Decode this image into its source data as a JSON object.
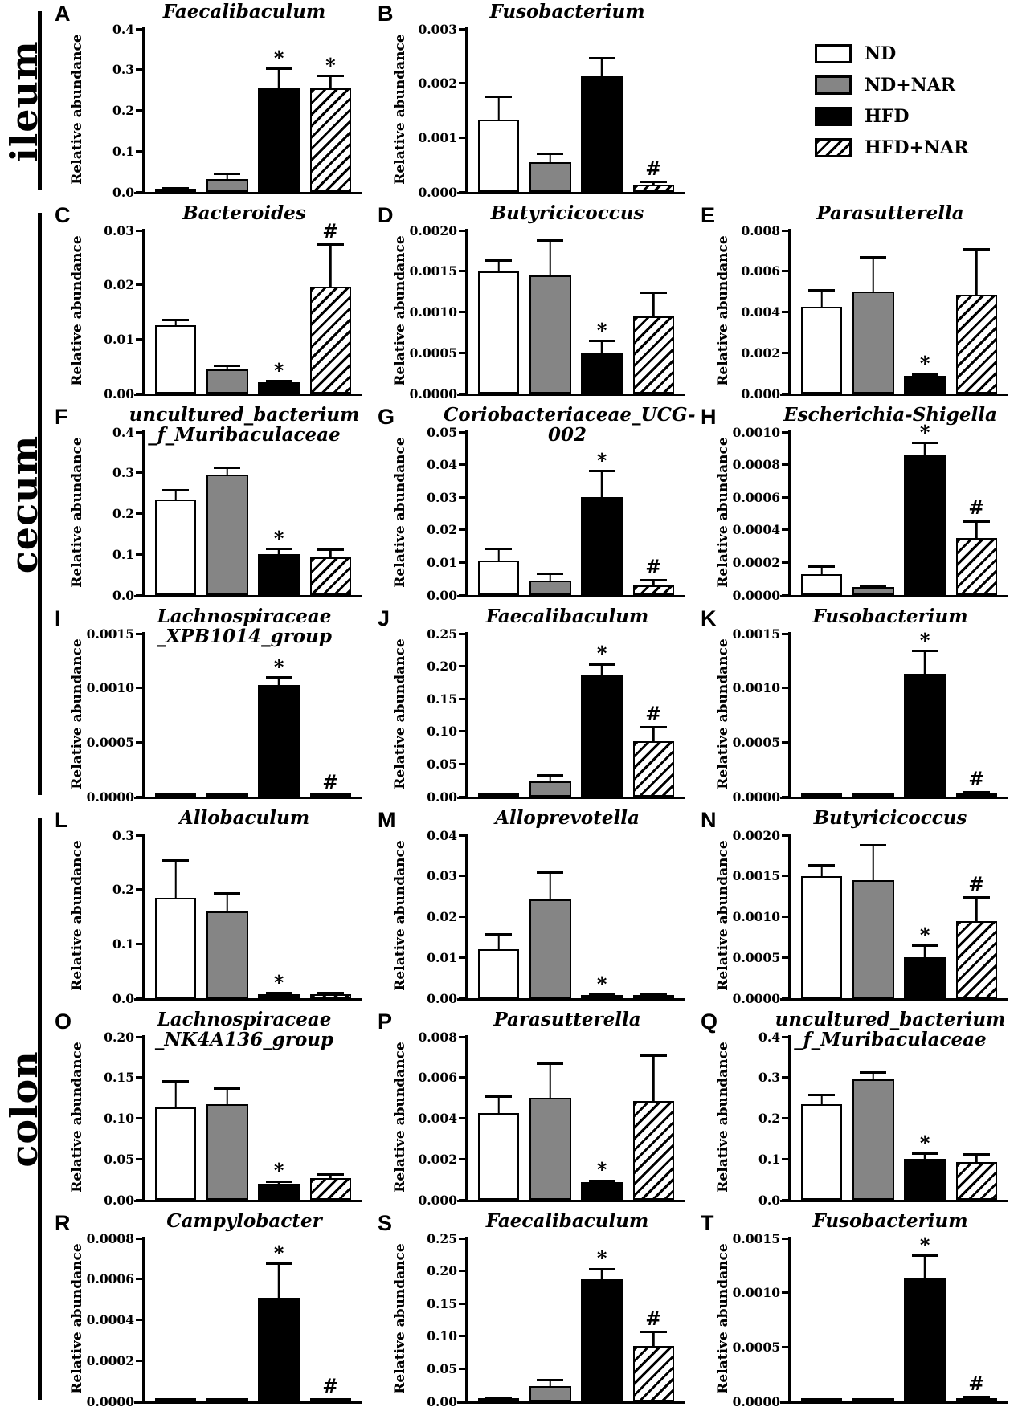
{
  "figure": {
    "ylabel_default": "Relative abundance"
  },
  "legend": {
    "items": [
      {
        "label": "ND",
        "fill": "white"
      },
      {
        "label": "ND+NAR",
        "fill": "gray"
      },
      {
        "label": "HFD",
        "fill": "black"
      },
      {
        "label": "HFD+NAR",
        "fill": "hatch"
      }
    ]
  },
  "colors": {
    "bar_black": "#000000",
    "bar_gray": "#858585",
    "bar_white": "#ffffff",
    "axis": "#000000",
    "background": "#ffffff"
  },
  "sections": [
    {
      "name": "ileum",
      "rows": [
        [
          "A",
          "B"
        ]
      ],
      "legend_in_row": 0
    },
    {
      "name": "cecum",
      "rows": [
        [
          "C",
          "D",
          "E"
        ],
        [
          "F",
          "G",
          "H"
        ],
        [
          "I",
          "J",
          "K"
        ]
      ]
    },
    {
      "name": "colon",
      "rows": [
        [
          "L",
          "M",
          "N"
        ],
        [
          "O",
          "P",
          "Q"
        ],
        [
          "R",
          "S",
          "T"
        ]
      ]
    }
  ],
  "chart_data": [
    {
      "label": "A",
      "section": "ileum",
      "type": "bar",
      "title": "Faecalibaculum",
      "title_lines": [
        "Faecalibaculum"
      ],
      "ylabel": "Relative abundance",
      "categories": [
        "ND",
        "ND+NAR",
        "HFD",
        "HFD+NAR"
      ],
      "values": [
        0.007,
        0.032,
        0.257,
        0.255
      ],
      "errors": [
        0.004,
        0.016,
        0.048,
        0.033
      ],
      "sig": [
        "",
        "",
        "*",
        "*"
      ],
      "ylim": [
        0,
        0.4
      ],
      "yticks": [
        "0.0",
        "0.1",
        "0.2",
        "0.3",
        "0.4"
      ]
    },
    {
      "label": "B",
      "section": "ileum",
      "type": "bar",
      "title": "Fusobacterium",
      "title_lines": [
        "Fusobacterium"
      ],
      "ylabel": "Relative abundance",
      "categories": [
        "ND",
        "ND+NAR",
        "HFD",
        "HFD+NAR"
      ],
      "values": [
        0.00133,
        0.00055,
        0.00213,
        0.00014
      ],
      "errors": [
        0.00044,
        0.00017,
        0.00035,
        7e-05
      ],
      "sig": [
        "",
        "",
        "",
        "#"
      ],
      "ylim": [
        0,
        0.003
      ],
      "yticks": [
        "0.000",
        "0.001",
        "0.002",
        "0.003"
      ]
    },
    {
      "label": "C",
      "section": "cecum",
      "type": "bar",
      "title": "Bacteroides",
      "title_lines": [
        "Bacteroides"
      ],
      "ylabel": "Relative abundance",
      "categories": [
        "ND",
        "ND+NAR",
        "HFD",
        "HFD+NAR"
      ],
      "values": [
        0.0125,
        0.0045,
        0.002,
        0.0196
      ],
      "errors": [
        0.0013,
        0.0008,
        0.0005,
        0.008
      ],
      "sig": [
        "",
        "",
        "*",
        "#"
      ],
      "ylim": [
        0,
        0.03
      ],
      "yticks": [
        "0.00",
        "0.01",
        "0.02",
        "0.03"
      ]
    },
    {
      "label": "D",
      "section": "cecum",
      "type": "bar",
      "title": "Butyricicoccus",
      "title_lines": [
        "Butyricicoccus"
      ],
      "ylabel": "Relative abundance",
      "categories": [
        "ND",
        "ND+NAR",
        "HFD",
        "HFD+NAR"
      ],
      "values": [
        0.0015,
        0.00145,
        0.0005,
        0.00095
      ],
      "errors": [
        0.00015,
        0.00044,
        0.00016,
        0.0003
      ],
      "sig": [
        "",
        "",
        "*",
        ""
      ],
      "ylim": [
        0,
        0.002
      ],
      "yticks": [
        "0.0000",
        "0.0005",
        "0.0010",
        "0.0015",
        "0.0020"
      ]
    },
    {
      "label": "E",
      "section": "cecum",
      "type": "bar",
      "title": "Parasutterella",
      "title_lines": [
        "Parasutterella"
      ],
      "ylabel": "Relative abundance",
      "categories": [
        "ND",
        "ND+NAR",
        "HFD",
        "HFD+NAR"
      ],
      "values": [
        0.00425,
        0.005,
        0.00085,
        0.00485
      ],
      "errors": [
        0.00088,
        0.00175,
        0.00015,
        0.0023
      ],
      "sig": [
        "",
        "",
        "*",
        ""
      ],
      "ylim": [
        0,
        0.008
      ],
      "yticks": [
        "0.000",
        "0.002",
        "0.004",
        "0.006",
        "0.008"
      ]
    },
    {
      "label": "F",
      "section": "cecum",
      "type": "bar",
      "title": "uncultured_bacterium_f_Muribaculaceae",
      "title_lines": [
        "uncultured_bacterium",
        "_f_Muribaculaceae"
      ],
      "ylabel": "Relative abundance",
      "categories": [
        "ND",
        "ND+NAR",
        "HFD",
        "HFD+NAR"
      ],
      "values": [
        0.235,
        0.295,
        0.1,
        0.093
      ],
      "errors": [
        0.026,
        0.02,
        0.016,
        0.022
      ],
      "sig": [
        "",
        "",
        "*",
        ""
      ],
      "ylim": [
        0,
        0.4
      ],
      "yticks": [
        "0.0",
        "0.1",
        "0.2",
        "0.3",
        "0.4"
      ]
    },
    {
      "label": "G",
      "section": "cecum",
      "type": "bar",
      "title": "Coriobacteriaceae_UCG-002",
      "title_lines": [
        "Coriobacteriaceae_UCG-002"
      ],
      "ylabel": "Relative abundance",
      "categories": [
        "ND",
        "ND+NAR",
        "HFD",
        "HFD+NAR"
      ],
      "values": [
        0.0105,
        0.0045,
        0.03,
        0.003
      ],
      "errors": [
        0.004,
        0.0025,
        0.0085,
        0.002
      ],
      "sig": [
        "",
        "",
        "*",
        "#"
      ],
      "ylim": [
        0,
        0.05
      ],
      "yticks": [
        "0.00",
        "0.01",
        "0.02",
        "0.03",
        "0.04",
        "0.05"
      ]
    },
    {
      "label": "H",
      "section": "cecum",
      "type": "bar",
      "title": "Escherichia-Shigella",
      "title_lines": [
        "Escherichia-Shigella"
      ],
      "ylabel": "Relative abundance",
      "categories": [
        "ND",
        "ND+NAR",
        "HFD",
        "HFD+NAR"
      ],
      "values": [
        0.00013,
        5e-05,
        0.00086,
        0.00035
      ],
      "errors": [
        5e-05,
        1e-05,
        8e-05,
        0.00011
      ],
      "sig": [
        "",
        "",
        "*",
        "#"
      ],
      "ylim": [
        0,
        0.001
      ],
      "yticks": [
        "0.0000",
        "0.0002",
        "0.0004",
        "0.0006",
        "0.0008",
        "0.0010"
      ]
    },
    {
      "label": "I",
      "section": "cecum",
      "type": "bar",
      "title": "Lachnospiraceae_XPB1014_group",
      "title_lines": [
        "Lachnospiraceae",
        "_XPB1014_group"
      ],
      "ylabel": "Relative abundance",
      "categories": [
        "ND",
        "ND+NAR",
        "HFD",
        "HFD+NAR"
      ],
      "values": [
        2e-05,
        1e-05,
        0.00103,
        1e-05
      ],
      "errors": [
        1e-05,
        5e-06,
        8e-05,
        5e-06
      ],
      "sig": [
        "",
        "",
        "*",
        "#"
      ],
      "ylim": [
        0,
        0.0015
      ],
      "yticks": [
        "0.0000",
        "0.0005",
        "0.0010",
        "0.0015"
      ]
    },
    {
      "label": "J",
      "section": "cecum",
      "type": "bar",
      "title": "Faecalibaculum",
      "title_lines": [
        "Faecalibaculum"
      ],
      "ylabel": "Relative abundance",
      "categories": [
        "ND",
        "ND+NAR",
        "HFD",
        "HFD+NAR"
      ],
      "values": [
        0.004,
        0.024,
        0.187,
        0.085
      ],
      "errors": [
        0.002,
        0.011,
        0.018,
        0.023
      ],
      "sig": [
        "",
        "",
        "*",
        "#"
      ],
      "ylim": [
        0,
        0.25
      ],
      "yticks": [
        "0.00",
        "0.05",
        "0.10",
        "0.15",
        "0.20",
        "0.25"
      ]
    },
    {
      "label": "K",
      "section": "cecum",
      "type": "bar",
      "title": "Fusobacterium",
      "title_lines": [
        "Fusobacterium"
      ],
      "ylabel": "Relative abundance",
      "categories": [
        "ND",
        "ND+NAR",
        "HFD",
        "HFD+NAR"
      ],
      "values": [
        2e-05,
        1e-05,
        0.00113,
        3e-05
      ],
      "errors": [
        1e-05,
        5e-06,
        0.00022,
        2e-05
      ],
      "sig": [
        "",
        "",
        "*",
        "#"
      ],
      "ylim": [
        0,
        0.0015
      ],
      "yticks": [
        "0.0000",
        "0.0005",
        "0.0010",
        "0.0015"
      ]
    },
    {
      "label": "L",
      "section": "colon",
      "type": "bar",
      "title": "Allobaculum",
      "title_lines": [
        "Allobaculum"
      ],
      "ylabel": "Relative abundance",
      "categories": [
        "ND",
        "ND+NAR",
        "HFD",
        "HFD+NAR"
      ],
      "values": [
        0.185,
        0.16,
        0.008,
        0.008
      ],
      "errors": [
        0.07,
        0.035,
        0.004,
        0.004
      ],
      "sig": [
        "",
        "",
        "*",
        ""
      ],
      "ylim": [
        0,
        0.3
      ],
      "yticks": [
        "0.0",
        "0.1",
        "0.2",
        "0.3"
      ]
    },
    {
      "label": "M",
      "section": "colon",
      "type": "bar",
      "title": "Alloprevotella",
      "title_lines": [
        "Alloprevotella"
      ],
      "ylabel": "Relative abundance",
      "categories": [
        "ND",
        "ND+NAR",
        "HFD",
        "HFD+NAR"
      ],
      "values": [
        0.012,
        0.0243,
        0.0008,
        0.0008
      ],
      "errors": [
        0.004,
        0.0068,
        0.0004,
        0.0004
      ],
      "sig": [
        "",
        "",
        "*",
        ""
      ],
      "ylim": [
        0,
        0.04
      ],
      "yticks": [
        "0.00",
        "0.01",
        "0.02",
        "0.03",
        "0.04"
      ]
    },
    {
      "label": "N",
      "section": "colon",
      "type": "bar",
      "title": "Butyricicoccus",
      "title_lines": [
        "Butyricicoccus"
      ],
      "ylabel": "Relative abundance",
      "categories": [
        "ND",
        "ND+NAR",
        "HFD",
        "HFD+NAR"
      ],
      "values": [
        0.0015,
        0.00145,
        0.0005,
        0.00095
      ],
      "errors": [
        0.00015,
        0.00044,
        0.00016,
        0.0003
      ],
      "sig": [
        "",
        "",
        "*",
        "#"
      ],
      "ylim": [
        0,
        0.002
      ],
      "yticks": [
        "0.0000",
        "0.0005",
        "0.0010",
        "0.0015",
        "0.0020"
      ]
    },
    {
      "label": "O",
      "section": "colon",
      "type": "bar",
      "title": "Lachnospiraceae_NK4A136_group",
      "title_lines": [
        "Lachnospiraceae",
        "_NK4A136_group"
      ],
      "ylabel": "Relative abundance",
      "categories": [
        "ND",
        "ND+NAR",
        "HFD",
        "HFD+NAR"
      ],
      "values": [
        0.113,
        0.117,
        0.02,
        0.027
      ],
      "errors": [
        0.034,
        0.021,
        0.004,
        0.006
      ],
      "sig": [
        "",
        "",
        "*",
        ""
      ],
      "ylim": [
        0,
        0.2
      ],
      "yticks": [
        "0.00",
        "0.05",
        "0.10",
        "0.15",
        "0.20"
      ]
    },
    {
      "label": "P",
      "section": "colon",
      "type": "bar",
      "title": "Parasutterella",
      "title_lines": [
        "Parasutterella"
      ],
      "ylabel": "Relative abundance",
      "categories": [
        "ND",
        "ND+NAR",
        "HFD",
        "HFD+NAR"
      ],
      "values": [
        0.00425,
        0.005,
        0.00085,
        0.00485
      ],
      "errors": [
        0.00088,
        0.00175,
        0.00015,
        0.0023
      ],
      "sig": [
        "",
        "",
        "*",
        ""
      ],
      "ylim": [
        0,
        0.008
      ],
      "yticks": [
        "0.000",
        "0.002",
        "0.004",
        "0.006",
        "0.008"
      ]
    },
    {
      "label": "Q",
      "section": "colon",
      "type": "bar",
      "title": "uncultured_bacterium_f_Muribaculaceae",
      "title_lines": [
        "uncultured_bacterium",
        "_f_Muribaculaceae"
      ],
      "ylabel": "Relative abundance",
      "categories": [
        "ND",
        "ND+NAR",
        "HFD",
        "HFD+NAR"
      ],
      "values": [
        0.235,
        0.295,
        0.1,
        0.093
      ],
      "errors": [
        0.026,
        0.02,
        0.016,
        0.022
      ],
      "sig": [
        "",
        "",
        "*",
        ""
      ],
      "ylim": [
        0,
        0.4
      ],
      "yticks": [
        "0.0",
        "0.1",
        "0.2",
        "0.3",
        "0.4"
      ]
    },
    {
      "label": "R",
      "section": "colon",
      "type": "bar",
      "title": "Campylobacter",
      "title_lines": [
        "Campylobacter"
      ],
      "ylabel": "Relative abundance",
      "categories": [
        "ND",
        "ND+NAR",
        "HFD",
        "HFD+NAR"
      ],
      "values": [
        1e-05,
        1e-05,
        0.00051,
        1e-05
      ],
      "errors": [
        5e-06,
        5e-06,
        0.00017,
        5e-06
      ],
      "sig": [
        "",
        "",
        "*",
        "#"
      ],
      "ylim": [
        0,
        0.0008
      ],
      "yticks": [
        "0.0000",
        "0.0002",
        "0.0004",
        "0.0006",
        "0.0008"
      ]
    },
    {
      "label": "S",
      "section": "colon",
      "type": "bar",
      "title": "Faecalibaculum",
      "title_lines": [
        "Faecalibaculum"
      ],
      "ylabel": "Relative abundance",
      "categories": [
        "ND",
        "ND+NAR",
        "HFD",
        "HFD+NAR"
      ],
      "values": [
        0.004,
        0.024,
        0.187,
        0.085
      ],
      "errors": [
        0.002,
        0.011,
        0.018,
        0.023
      ],
      "sig": [
        "",
        "",
        "*",
        "#"
      ],
      "ylim": [
        0,
        0.25
      ],
      "yticks": [
        "0.00",
        "0.05",
        "0.10",
        "0.15",
        "0.20",
        "0.25"
      ]
    },
    {
      "label": "T",
      "section": "colon",
      "type": "bar",
      "title": "Fusobacterium",
      "title_lines": [
        "Fusobacterium"
      ],
      "ylabel": "Relative abundance",
      "categories": [
        "ND",
        "ND+NAR",
        "HFD",
        "HFD+NAR"
      ],
      "values": [
        2e-05,
        1e-05,
        0.00113,
        3e-05
      ],
      "errors": [
        1e-05,
        5e-06,
        0.00022,
        2e-05
      ],
      "sig": [
        "",
        "",
        "*",
        "#"
      ],
      "ylim": [
        0,
        0.0015
      ],
      "yticks": [
        "0.0000",
        "0.0005",
        "0.0010",
        "0.0015"
      ]
    }
  ]
}
